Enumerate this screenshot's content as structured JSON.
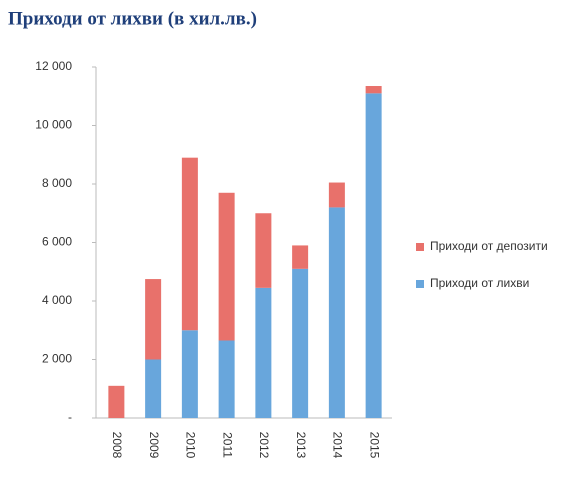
{
  "chart_data": {
    "type": "stacked_bar",
    "title": "Приходи от лихви  (в хил.лв.)",
    "categories": [
      "2008",
      "2009",
      "2010",
      "2011",
      "2012",
      "2013",
      "2014",
      "2015"
    ],
    "series": [
      {
        "name": "Приходи от лихви",
        "color": "#68a6dc",
        "values": [
          0,
          2000,
          3000,
          2650,
          4450,
          5100,
          7200,
          11100
        ]
      },
      {
        "name": "Приходи от депозити",
        "color": "#e8716b",
        "values": [
          1100,
          2750,
          5900,
          5050,
          2550,
          800,
          850,
          250
        ]
      }
    ],
    "ylim": [
      0,
      12000
    ],
    "yticks": [
      {
        "value": 0,
        "label": "-"
      },
      {
        "value": 2000,
        "label": "2 000"
      },
      {
        "value": 4000,
        "label": "4 000"
      },
      {
        "value": 6000,
        "label": "6 000"
      },
      {
        "value": 8000,
        "label": "8 000"
      },
      {
        "value": 10000,
        "label": "10 000"
      },
      {
        "value": 12000,
        "label": "12 000"
      }
    ],
    "grid": false,
    "legend": "right"
  }
}
